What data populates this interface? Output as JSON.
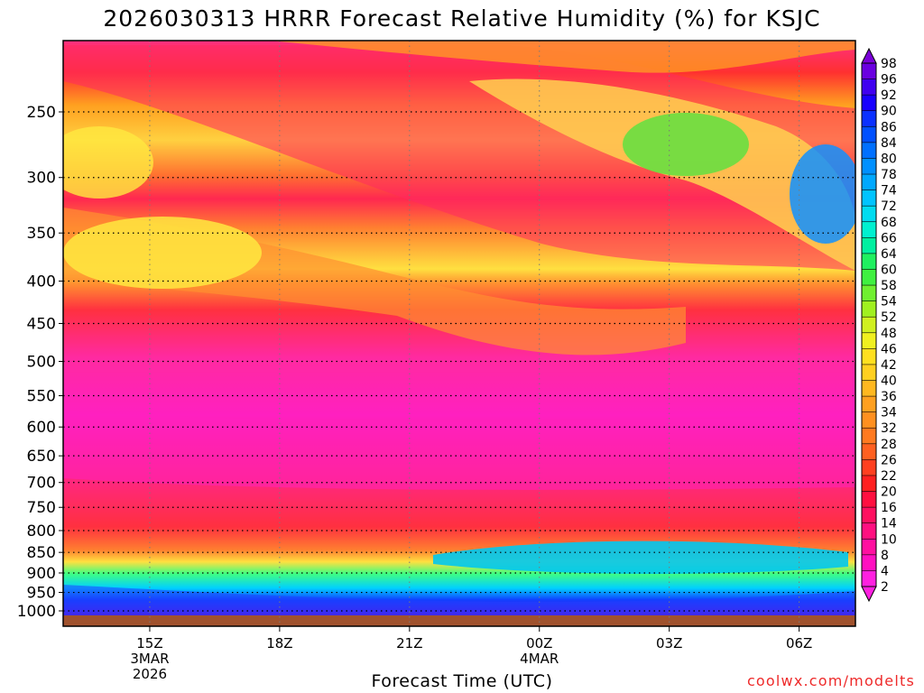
{
  "chart_data": {
    "type": "heatmap",
    "title": "2026030313 HRRR Forecast Relative Humidity (%) for KSJC",
    "xlabel": "Forecast Time (UTC)",
    "ylabel": "",
    "y_scale": "log-pressure",
    "y_axis": {
      "ticks": [
        250,
        300,
        350,
        400,
        450,
        500,
        550,
        600,
        650,
        700,
        750,
        800,
        850,
        900,
        950,
        1000
      ],
      "range": [
        200,
        1030
      ]
    },
    "x_axis": {
      "range_hours": [
        13.0,
        31.3
      ],
      "ticks": [
        {
          "hour": 15,
          "lines": [
            "15Z",
            "3MAR",
            "2026"
          ]
        },
        {
          "hour": 18,
          "lines": [
            "18Z"
          ]
        },
        {
          "hour": 21,
          "lines": [
            "21Z"
          ]
        },
        {
          "hour": 24,
          "lines": [
            "00Z",
            "4MAR"
          ]
        },
        {
          "hour": 27,
          "lines": [
            "03Z"
          ]
        },
        {
          "hour": 30,
          "lines": [
            "06Z"
          ]
        }
      ]
    },
    "grid": true,
    "colorbar": {
      "levels": [
        98,
        96,
        92,
        90,
        86,
        84,
        80,
        78,
        74,
        72,
        68,
        66,
        64,
        60,
        58,
        54,
        52,
        48,
        46,
        42,
        40,
        36,
        34,
        32,
        28,
        26,
        22,
        20,
        16,
        14,
        10,
        8,
        4,
        2
      ],
      "colors": [
        "#7a00d8",
        "#6a00e0",
        "#4000f0",
        "#1800ff",
        "#0a30ff",
        "#0050ff",
        "#0070ff",
        "#0090ff",
        "#00a8ff",
        "#00c4ff",
        "#00dcf0",
        "#00f0d0",
        "#00f0a0",
        "#20f060",
        "#40f040",
        "#70f030",
        "#a0f020",
        "#d0f020",
        "#f0f020",
        "#ffe020",
        "#ffd020",
        "#ffb820",
        "#ffa020",
        "#ff9020",
        "#ff7a20",
        "#ff6020",
        "#ff4020",
        "#ff2020",
        "#ff1040",
        "#ff1060",
        "#ff1080",
        "#ff10a0",
        "#ff10c0",
        "#ff20e0"
      ]
    }
  },
  "footer": {
    "credit": "coolwx.com/modelts"
  }
}
